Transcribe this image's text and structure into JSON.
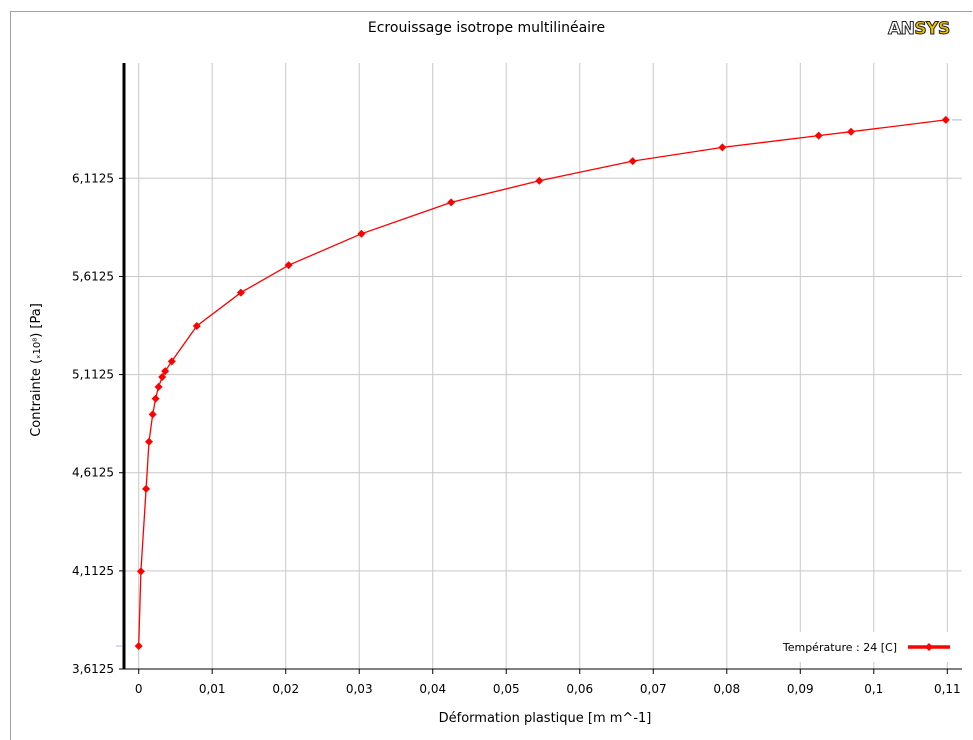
{
  "chart_data": {
    "type": "line",
    "title": "Ecrouissage isotrope multilinéaire",
    "xlabel": "Déformation plastique  [m m^-1]",
    "ylabel": "Contrainte  (x10⁸)  [Pa]",
    "ylabel_parts": {
      "text": "Contrainte  (",
      "mult": "ₓ10⁸",
      "unit": ")  [Pa]"
    },
    "xlim": [
      -0.002,
      0.112
    ],
    "ylim": [
      3.6125,
      6.7
    ],
    "x_ticks": [
      0,
      0.01,
      0.02,
      0.03,
      0.04,
      0.05,
      0.06,
      0.07,
      0.08,
      0.09,
      0.1,
      0.11
    ],
    "x_tick_labels": [
      "0",
      "0,01",
      "0,02",
      "0,03",
      "0,04",
      "0,05",
      "0,06",
      "0,07",
      "0,08",
      "0,09",
      "0,1",
      "0,11"
    ],
    "y_ticks": [
      3.6125,
      4.1125,
      4.6125,
      5.1125,
      5.6125,
      6.1125
    ],
    "y_tick_labels": [
      "3,6125",
      "4,1125",
      "4,6125",
      "5,1125",
      "5,6125",
      "6,1125"
    ],
    "grid": true,
    "legend": "bottom-right",
    "series": [
      {
        "name": "Température : 24 [C]",
        "color": "#ff0000",
        "marker": "diamond",
        "x": [
          0,
          0.0003,
          0.001,
          0.0014,
          0.0019,
          0.0023,
          0.0027,
          0.0032,
          0.0036,
          0.0045,
          0.0079,
          0.0139,
          0.0204,
          0.0303,
          0.0425,
          0.0545,
          0.0672,
          0.0794,
          0.0925,
          0.0969,
          0.1098
        ],
        "y": [
          3.73,
          4.11,
          4.53,
          4.77,
          4.91,
          4.99,
          5.05,
          5.1,
          5.13,
          5.18,
          5.36,
          5.53,
          5.67,
          5.83,
          5.99,
          6.1,
          6.2,
          6.27,
          6.33,
          6.35,
          6.41
        ]
      }
    ]
  },
  "logo": {
    "part1": "AN",
    "part2": "SYS"
  }
}
